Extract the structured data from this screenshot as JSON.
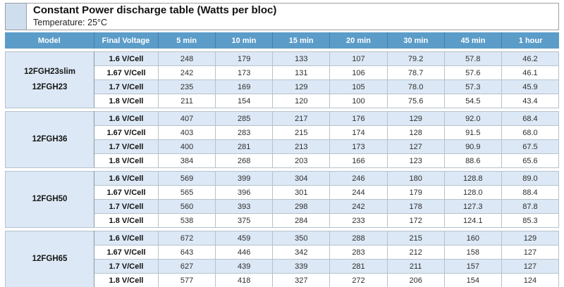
{
  "title": "Constant Power discharge table (Watts per bloc)",
  "subtitle": "Temperature: 25°C",
  "columns": [
    "Model",
    "Final Voltage",
    "5 min",
    "10 min",
    "15 min",
    "20 min",
    "30 min",
    "45 min",
    "1 hour"
  ],
  "groups": [
    {
      "model": [
        "12FGH23slim",
        "12FGH23"
      ],
      "rows": [
        {
          "voltage": "1.6 V/Cell",
          "values": [
            "248",
            "179",
            "133",
            "107",
            "79.2",
            "57.8",
            "46.2"
          ]
        },
        {
          "voltage": "1.67 V/Cell",
          "values": [
            "242",
            "173",
            "131",
            "106",
            "78.7",
            "57.6",
            "46.1"
          ]
        },
        {
          "voltage": "1.7 V/Cell",
          "values": [
            "235",
            "169",
            "129",
            "105",
            "78.0",
            "57.3",
            "45.9"
          ]
        },
        {
          "voltage": "1.8 V/Cell",
          "values": [
            "211",
            "154",
            "120",
            "100",
            "75.6",
            "54.5",
            "43.4"
          ]
        }
      ]
    },
    {
      "model": [
        "12FGH36"
      ],
      "rows": [
        {
          "voltage": "1.6 V/Cell",
          "values": [
            "407",
            "285",
            "217",
            "176",
            "129",
            "92.0",
            "68.4"
          ]
        },
        {
          "voltage": "1.67 V/Cell",
          "values": [
            "403",
            "283",
            "215",
            "174",
            "128",
            "91.5",
            "68.0"
          ]
        },
        {
          "voltage": "1.7 V/Cell",
          "values": [
            "400",
            "281",
            "213",
            "173",
            "127",
            "90.9",
            "67.5"
          ]
        },
        {
          "voltage": "1.8 V/Cell",
          "values": [
            "384",
            "268",
            "203",
            "166",
            "123",
            "88.6",
            "65.6"
          ]
        }
      ]
    },
    {
      "model": [
        "12FGH50"
      ],
      "rows": [
        {
          "voltage": "1.6 V/Cell",
          "values": [
            "569",
            "399",
            "304",
            "246",
            "180",
            "128.8",
            "89.0"
          ]
        },
        {
          "voltage": "1.67 V/Cell",
          "values": [
            "565",
            "396",
            "301",
            "244",
            "179",
            "128.0",
            "88.4"
          ]
        },
        {
          "voltage": "1.7 V/Cell",
          "values": [
            "560",
            "393",
            "298",
            "242",
            "178",
            "127.3",
            "87.8"
          ]
        },
        {
          "voltage": "1.8 V/Cell",
          "values": [
            "538",
            "375",
            "284",
            "233",
            "172",
            "124.1",
            "85.3"
          ]
        }
      ]
    },
    {
      "model": [
        "12FGH65"
      ],
      "rows": [
        {
          "voltage": "1.6 V/Cell",
          "values": [
            "672",
            "459",
            "350",
            "288",
            "215",
            "160",
            "129"
          ]
        },
        {
          "voltage": "1.67 V/Cell",
          "values": [
            "643",
            "446",
            "342",
            "283",
            "212",
            "158",
            "127"
          ]
        },
        {
          "voltage": "1.7 V/Cell",
          "values": [
            "627",
            "439",
            "339",
            "281",
            "211",
            "157",
            "127"
          ]
        },
        {
          "voltage": "1.8 V/Cell",
          "values": [
            "577",
            "418",
            "327",
            "272",
            "206",
            "154",
            "124"
          ]
        }
      ]
    }
  ],
  "colors": {
    "header_bg": "#5b9cc9",
    "header_separator": "#4481ab",
    "stripe_bg": "#dce8f5",
    "model_bg": "#d6e2f0",
    "corner_square_bg": "#cfdeee",
    "block_border": "#8c9aa2"
  }
}
